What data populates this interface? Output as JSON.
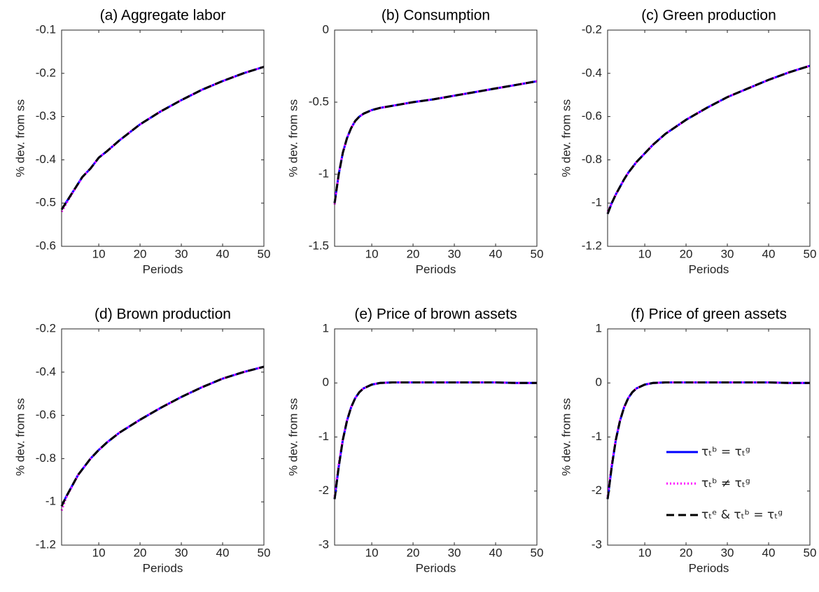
{
  "chart_data": [
    {
      "type": "line",
      "title": "(a) Aggregate labor",
      "xlabel": "Periods",
      "ylabel": "% dev. from ss",
      "x": [
        1,
        2,
        3,
        4,
        5,
        6,
        7,
        8,
        10,
        12,
        15,
        20,
        25,
        30,
        35,
        40,
        45,
        50
      ],
      "xlim": [
        1,
        50
      ],
      "xticks": [
        10,
        20,
        30,
        40,
        50
      ],
      "ylim": [
        -0.6,
        -0.1
      ],
      "yticks": [
        -0.6,
        -0.5,
        -0.4,
        -0.3,
        -0.2,
        -0.1
      ],
      "series": [
        {
          "color": "#0000ff",
          "linestyle": "solid",
          "values": [
            -0.515,
            -0.5,
            -0.485,
            -0.47,
            -0.455,
            -0.44,
            -0.43,
            -0.42,
            -0.395,
            -0.38,
            -0.355,
            -0.318,
            -0.288,
            -0.262,
            -0.238,
            -0.218,
            -0.2,
            -0.185
          ]
        },
        {
          "color": "#ff00ff",
          "linestyle": "dotted",
          "values": [
            -0.52,
            -0.503,
            -0.487,
            -0.471,
            -0.456,
            -0.441,
            -0.43,
            -0.42,
            -0.395,
            -0.38,
            -0.355,
            -0.318,
            -0.288,
            -0.262,
            -0.238,
            -0.218,
            -0.2,
            -0.185
          ]
        },
        {
          "color": "#000000",
          "linestyle": "dashed",
          "values": [
            -0.515,
            -0.5,
            -0.485,
            -0.47,
            -0.455,
            -0.44,
            -0.43,
            -0.42,
            -0.395,
            -0.38,
            -0.355,
            -0.318,
            -0.288,
            -0.262,
            -0.238,
            -0.218,
            -0.2,
            -0.185
          ]
        }
      ]
    },
    {
      "type": "line",
      "title": "(b) Consumption",
      "xlabel": "Periods",
      "ylabel": "% dev. from ss",
      "x": [
        1,
        2,
        3,
        4,
        5,
        6,
        7,
        8,
        10,
        12,
        15,
        20,
        25,
        30,
        35,
        40,
        45,
        50
      ],
      "xlim": [
        1,
        50
      ],
      "xticks": [
        10,
        20,
        30,
        40,
        50
      ],
      "ylim": [
        -1.5,
        0
      ],
      "yticks": [
        -1.5,
        -1,
        -0.5,
        0
      ],
      "series": [
        {
          "color": "#0000ff",
          "linestyle": "solid",
          "values": [
            -1.2,
            -1.0,
            -0.85,
            -0.75,
            -0.68,
            -0.63,
            -0.6,
            -0.58,
            -0.555,
            -0.54,
            -0.525,
            -0.5,
            -0.48,
            -0.455,
            -0.43,
            -0.405,
            -0.38,
            -0.355
          ]
        },
        {
          "color": "#ff00ff",
          "linestyle": "dotted",
          "values": [
            -1.21,
            -1.0,
            -0.85,
            -0.75,
            -0.68,
            -0.63,
            -0.6,
            -0.58,
            -0.555,
            -0.54,
            -0.525,
            -0.5,
            -0.48,
            -0.455,
            -0.43,
            -0.405,
            -0.38,
            -0.355
          ]
        },
        {
          "color": "#000000",
          "linestyle": "dashed",
          "values": [
            -1.2,
            -1.0,
            -0.85,
            -0.75,
            -0.68,
            -0.63,
            -0.6,
            -0.58,
            -0.555,
            -0.54,
            -0.525,
            -0.5,
            -0.48,
            -0.455,
            -0.43,
            -0.405,
            -0.38,
            -0.355
          ]
        }
      ]
    },
    {
      "type": "line",
      "title": "(c) Green production",
      "xlabel": "Periods",
      "ylabel": "% dev. from ss",
      "x": [
        1,
        2,
        3,
        4,
        5,
        6,
        7,
        8,
        10,
        12,
        15,
        20,
        25,
        30,
        35,
        40,
        45,
        50
      ],
      "xlim": [
        1,
        50
      ],
      "xticks": [
        10,
        20,
        30,
        40,
        50
      ],
      "ylim": [
        -1.2,
        -0.2
      ],
      "yticks": [
        -1.2,
        -1,
        -0.8,
        -0.6,
        -0.4,
        -0.2
      ],
      "series": [
        {
          "color": "#0000ff",
          "linestyle": "solid",
          "values": [
            -1.05,
            -1.0,
            -0.96,
            -0.925,
            -0.89,
            -0.86,
            -0.835,
            -0.81,
            -0.77,
            -0.73,
            -0.68,
            -0.615,
            -0.56,
            -0.51,
            -0.47,
            -0.43,
            -0.395,
            -0.365
          ]
        },
        {
          "color": "#ff00ff",
          "linestyle": "dotted",
          "values": [
            -1.04,
            -1.0,
            -0.96,
            -0.925,
            -0.89,
            -0.86,
            -0.835,
            -0.81,
            -0.77,
            -0.73,
            -0.68,
            -0.615,
            -0.56,
            -0.51,
            -0.47,
            -0.43,
            -0.395,
            -0.365
          ]
        },
        {
          "color": "#000000",
          "linestyle": "dashed",
          "values": [
            -1.05,
            -1.0,
            -0.96,
            -0.925,
            -0.89,
            -0.86,
            -0.835,
            -0.81,
            -0.77,
            -0.73,
            -0.68,
            -0.615,
            -0.56,
            -0.51,
            -0.47,
            -0.43,
            -0.395,
            -0.365
          ]
        }
      ]
    },
    {
      "type": "line",
      "title": "(d) Brown production",
      "xlabel": "Periods",
      "ylabel": "% dev. from ss",
      "x": [
        1,
        2,
        3,
        4,
        5,
        6,
        7,
        8,
        10,
        12,
        15,
        20,
        25,
        30,
        35,
        40,
        45,
        50
      ],
      "xlim": [
        1,
        50
      ],
      "xticks": [
        10,
        20,
        30,
        40,
        50
      ],
      "ylim": [
        -1.2,
        -0.2
      ],
      "yticks": [
        -1.2,
        -1,
        -0.8,
        -0.6,
        -0.4,
        -0.2
      ],
      "series": [
        {
          "color": "#0000ff",
          "linestyle": "solid",
          "values": [
            -1.02,
            -0.98,
            -0.945,
            -0.91,
            -0.875,
            -0.85,
            -0.825,
            -0.8,
            -0.76,
            -0.725,
            -0.68,
            -0.62,
            -0.565,
            -0.515,
            -0.47,
            -0.43,
            -0.4,
            -0.375
          ]
        },
        {
          "color": "#ff00ff",
          "linestyle": "dotted",
          "values": [
            -1.04,
            -0.985,
            -0.948,
            -0.912,
            -0.876,
            -0.85,
            -0.825,
            -0.8,
            -0.76,
            -0.725,
            -0.68,
            -0.62,
            -0.565,
            -0.515,
            -0.47,
            -0.43,
            -0.4,
            -0.375
          ]
        },
        {
          "color": "#000000",
          "linestyle": "dashed",
          "values": [
            -1.02,
            -0.98,
            -0.945,
            -0.91,
            -0.875,
            -0.85,
            -0.825,
            -0.8,
            -0.76,
            -0.725,
            -0.68,
            -0.62,
            -0.565,
            -0.515,
            -0.47,
            -0.43,
            -0.4,
            -0.375
          ]
        }
      ]
    },
    {
      "type": "line",
      "title": "(e) Price of brown assets",
      "xlabel": "Periods",
      "ylabel": "% dev. from ss",
      "x": [
        1,
        2,
        3,
        4,
        5,
        6,
        7,
        8,
        10,
        12,
        15,
        20,
        25,
        30,
        35,
        40,
        45,
        50
      ],
      "xlim": [
        1,
        50
      ],
      "xticks": [
        10,
        20,
        30,
        40,
        50
      ],
      "ylim": [
        -3,
        1
      ],
      "yticks": [
        -3,
        -2,
        -1,
        0,
        1
      ],
      "series": [
        {
          "color": "#0000ff",
          "linestyle": "solid",
          "values": [
            -2.15,
            -1.55,
            -1.05,
            -0.7,
            -0.45,
            -0.28,
            -0.17,
            -0.1,
            -0.03,
            0,
            0.01,
            0.01,
            0.01,
            0.01,
            0.01,
            0.01,
            0,
            0
          ]
        },
        {
          "color": "#ff00ff",
          "linestyle": "dotted",
          "values": [
            -2.1,
            -1.5,
            -1.03,
            -0.69,
            -0.45,
            -0.28,
            -0.17,
            -0.1,
            -0.03,
            0,
            0.01,
            0.01,
            0.01,
            0.01,
            0.01,
            0.01,
            0,
            0
          ]
        },
        {
          "color": "#000000",
          "linestyle": "dashed",
          "values": [
            -2.15,
            -1.55,
            -1.05,
            -0.7,
            -0.45,
            -0.28,
            -0.17,
            -0.1,
            -0.03,
            0,
            0.01,
            0.01,
            0.01,
            0.01,
            0.01,
            0.01,
            0,
            0
          ]
        }
      ]
    },
    {
      "type": "line",
      "title": "(f) Price of green assets",
      "xlabel": "Periods",
      "ylabel": "% dev. from ss",
      "x": [
        1,
        2,
        3,
        4,
        5,
        6,
        7,
        8,
        10,
        12,
        15,
        20,
        25,
        30,
        35,
        40,
        45,
        50
      ],
      "xlim": [
        1,
        50
      ],
      "xticks": [
        10,
        20,
        30,
        40,
        50
      ],
      "ylim": [
        -3,
        1
      ],
      "yticks": [
        -3,
        -2,
        -1,
        0,
        1
      ],
      "legend": "southeast",
      "series": [
        {
          "name": "τₜᵇ = τₜᵍ",
          "color": "#0000ff",
          "linestyle": "solid",
          "values": [
            -2.15,
            -1.55,
            -1.05,
            -0.7,
            -0.45,
            -0.28,
            -0.17,
            -0.1,
            -0.03,
            0,
            0.01,
            0.01,
            0.01,
            0.01,
            0.01,
            0.01,
            0,
            0
          ]
        },
        {
          "name": "τₜᵇ ≠ τₜᵍ",
          "color": "#ff00ff",
          "linestyle": "dotted",
          "values": [
            -2.1,
            -1.5,
            -1.03,
            -0.69,
            -0.45,
            -0.28,
            -0.17,
            -0.1,
            -0.03,
            0,
            0.01,
            0.01,
            0.01,
            0.01,
            0.01,
            0.01,
            0,
            0
          ]
        },
        {
          "name": "τₜᵉ & τₜᵇ = τₜᵍ",
          "color": "#000000",
          "linestyle": "dashed",
          "values": [
            -2.15,
            -1.55,
            -1.05,
            -0.7,
            -0.45,
            -0.28,
            -0.17,
            -0.1,
            -0.03,
            0,
            0.01,
            0.01,
            0.01,
            0.01,
            0.01,
            0.01,
            0,
            0
          ]
        }
      ]
    }
  ]
}
